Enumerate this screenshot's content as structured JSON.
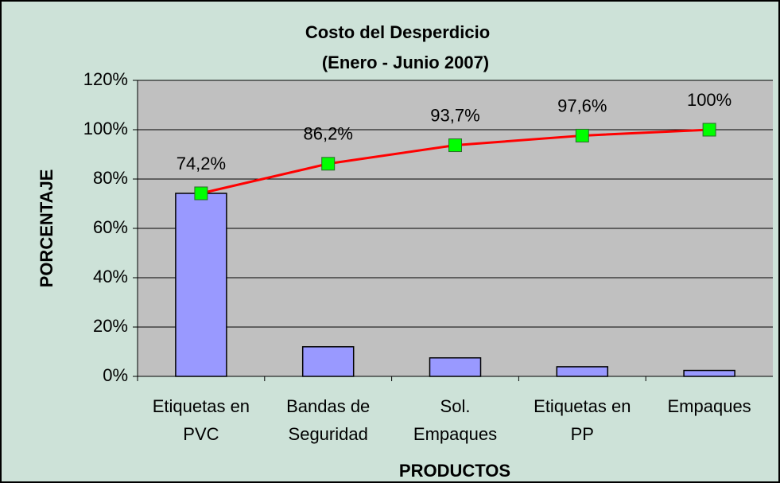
{
  "chart_data": {
    "type": "pareto",
    "title": "Costo del Desperdicio",
    "subtitle": "(Enero - Junio 2007)",
    "x_label": "PRODUCTOS",
    "y_label": "PORCENTAJE",
    "categories": [
      "Etiquetas en\nPVC",
      "Bandas de\nSeguridad",
      "Sol.\nEmpaques",
      "Etiquetas en\nPP",
      "Empaques"
    ],
    "series": [
      {
        "type": "bar",
        "color": "#9999ff",
        "values": [
          74.2,
          12,
          7.5,
          3.9,
          2.4
        ]
      },
      {
        "type": "line",
        "color": "#ff0000",
        "marker_color": "#00ff00",
        "values": [
          74.2,
          86.2,
          93.7,
          97.6,
          100
        ],
        "value_labels": [
          "74,2%",
          "86,2%",
          "93,7%",
          "97,6%",
          "100%"
        ]
      }
    ],
    "ylim": [
      0,
      120
    ],
    "yticks": [
      {
        "value": 0,
        "label": "0%"
      },
      {
        "value": 20,
        "label": "20%"
      },
      {
        "value": 40,
        "label": "40%"
      },
      {
        "value": 60,
        "label": "60%"
      },
      {
        "value": 80,
        "label": "80%"
      },
      {
        "value": 100,
        "label": "100%"
      },
      {
        "value": 120,
        "label": "120%"
      }
    ],
    "grid": true
  }
}
